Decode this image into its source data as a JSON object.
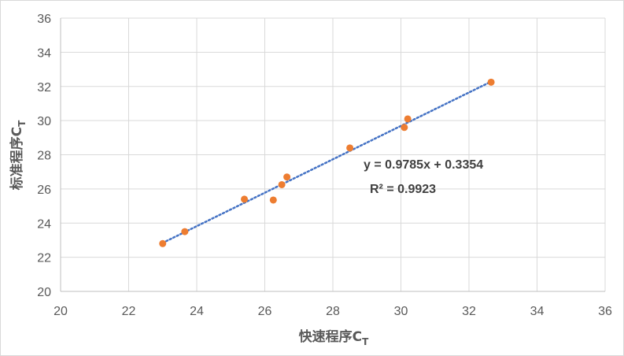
{
  "chart_data": {
    "type": "scatter",
    "xlabel": "快速程序C",
    "xlabel_sub": "T",
    "ylabel": "标准程序C",
    "ylabel_sub": "T",
    "xlim": [
      20,
      36
    ],
    "ylim": [
      20,
      36
    ],
    "xticks": [
      "20",
      "22",
      "24",
      "26",
      "28",
      "30",
      "32",
      "34",
      "36"
    ],
    "yticks": [
      "20",
      "22",
      "24",
      "26",
      "28",
      "30",
      "32",
      "34",
      "36"
    ],
    "grid": true,
    "legend": "none",
    "series": [
      {
        "color": "#ED7D31",
        "marker": "circle",
        "points": [
          {
            "x": 23.0,
            "y": 22.8
          },
          {
            "x": 23.65,
            "y": 23.5
          },
          {
            "x": 25.4,
            "y": 25.4
          },
          {
            "x": 26.25,
            "y": 25.35
          },
          {
            "x": 26.5,
            "y": 26.25
          },
          {
            "x": 26.65,
            "y": 26.7
          },
          {
            "x": 28.5,
            "y": 28.4
          },
          {
            "x": 30.1,
            "y": 29.6
          },
          {
            "x": 30.2,
            "y": 30.1
          },
          {
            "x": 32.65,
            "y": 32.25
          }
        ]
      }
    ],
    "trendline": {
      "type": "linear",
      "slope": 0.9785,
      "intercept": 0.3354,
      "x_range": [
        23.0,
        32.65
      ],
      "color": "#4472C4",
      "style": "dotted",
      "equation": "y = 0.9785x + 0.3354",
      "r_squared": "R² = 0.9923"
    }
  }
}
